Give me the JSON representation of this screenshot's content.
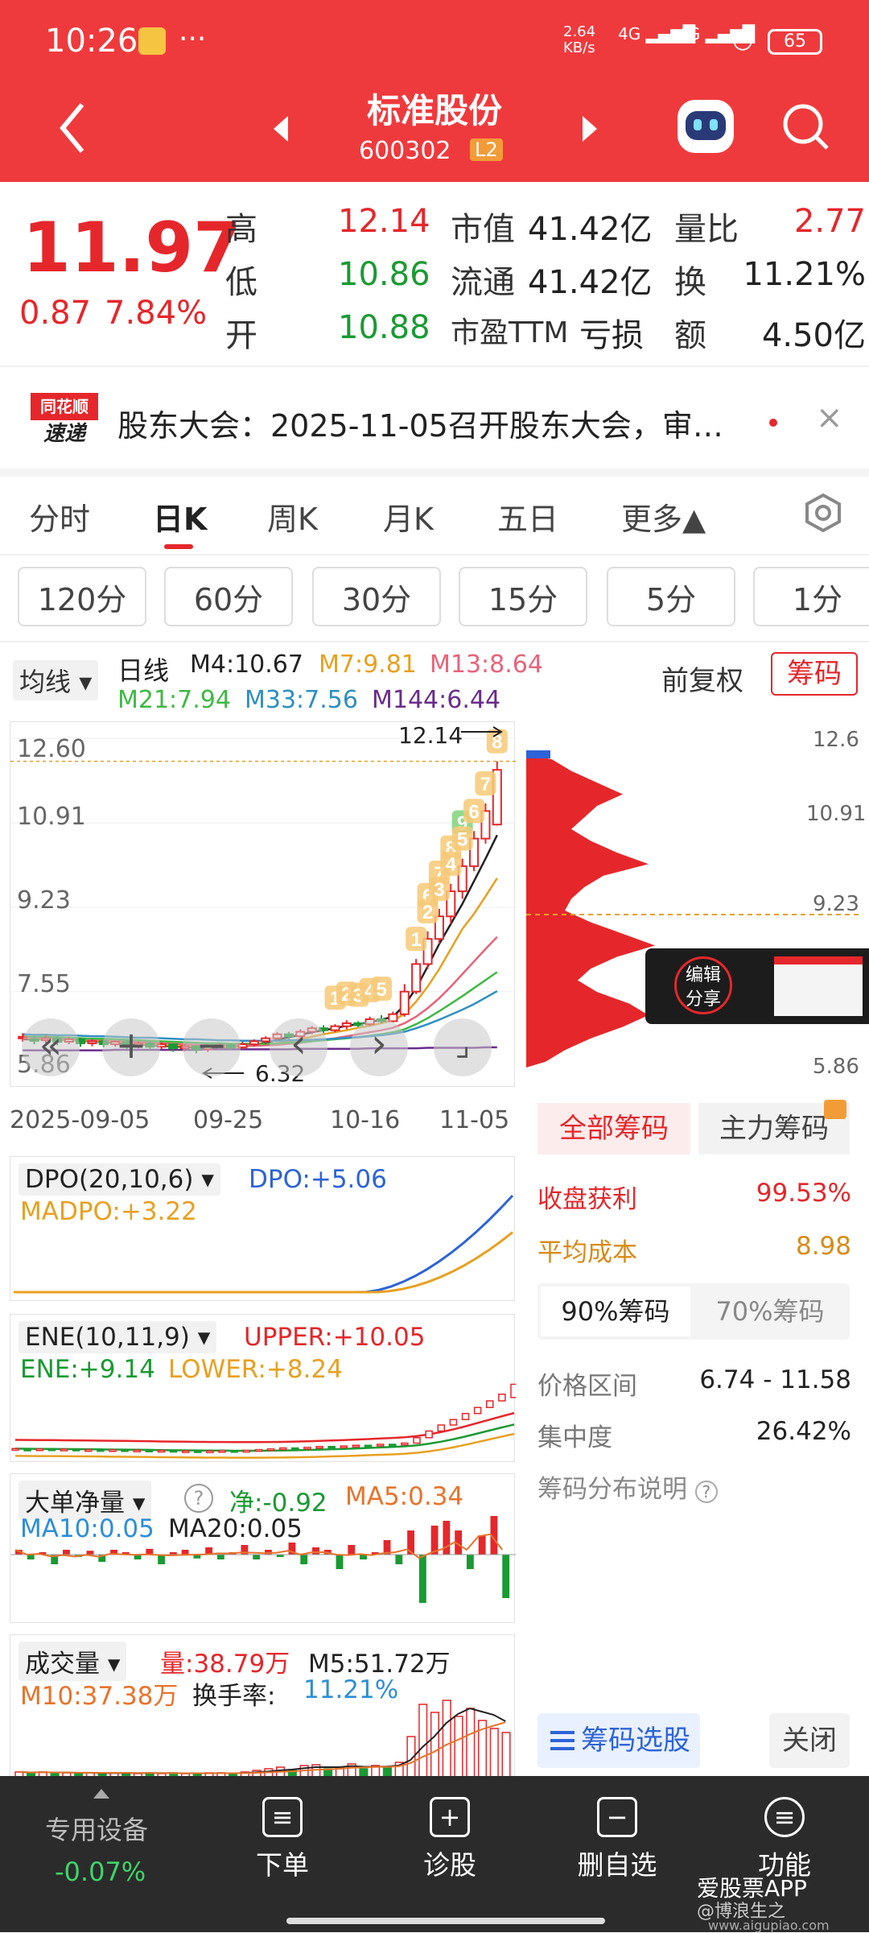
{
  "status_bar": {
    "time": "10:26",
    "dots": "···",
    "net_speed": "2.64 KB/s",
    "sig1": "4G",
    "sig2": "4G",
    "battery": "65"
  },
  "nav": {
    "title": "标准股份",
    "code": "600302",
    "level_badge": "L2"
  },
  "quote": {
    "price": "11.97",
    "change": "0.87",
    "change_pct": "7.84%",
    "rows": [
      {
        "l1": "高",
        "v1": "12.14",
        "l2": "市值",
        "v2": "41.42亿",
        "l3": "量比",
        "v3": "2.77"
      },
      {
        "l1": "低",
        "v1": "10.86",
        "l2": "流通",
        "v2": "41.42亿",
        "l3": "换",
        "v3": "11.21%"
      },
      {
        "l1": "开",
        "v1": "10.88",
        "l2": "市盈TTM",
        "v2": "亏损",
        "l3": "额",
        "v3": "4.50亿"
      }
    ]
  },
  "news": {
    "logo_top": "同花顺",
    "logo_bottom": "速递",
    "text": "股东大会：2025-11-05召开股东大会，审…"
  },
  "tabs": [
    "分时",
    "日K",
    "周K",
    "月K",
    "五日",
    "更多▲"
  ],
  "minute_buttons": [
    "120分",
    "60分",
    "30分",
    "15分",
    "5分",
    "1分"
  ],
  "chart_header": {
    "ma_dropdown": "均线",
    "period": "日线",
    "ma_items": [
      {
        "label": "M4:10.67",
        "color": "#222222"
      },
      {
        "label": "M7:9.81",
        "color": "#e8a020"
      },
      {
        "label": "M13:8.64",
        "color": "#e8637a"
      },
      {
        "label": "M21:7.94",
        "color": "#3fb944"
      },
      {
        "label": "M33:7.56",
        "color": "#2e8fc2"
      },
      {
        "label": "M144:6.44",
        "color": "#6b2d8c"
      }
    ],
    "adjust": "前复权",
    "chip_button": "筹码"
  },
  "chart_data": {
    "type": "candlestick",
    "y_ticks": [
      "12.60",
      "10.91",
      "9.23",
      "7.55",
      "5.86"
    ],
    "right_ticks": [
      "12.6",
      "10.91",
      "9.23",
      "5.86"
    ],
    "x_ticks": [
      "2025-09-05",
      "09-25",
      "10-16",
      "11-05"
    ],
    "high_mark": "12.14",
    "low_mark": "6.32",
    "ylim": [
      5.86,
      12.6
    ],
    "candles": [
      [
        6.62,
        6.65,
        6.55,
        6.72
      ],
      [
        6.6,
        6.58,
        6.5,
        6.66
      ],
      [
        6.58,
        6.62,
        6.52,
        6.68
      ],
      [
        6.62,
        6.55,
        6.48,
        6.66
      ],
      [
        6.55,
        6.6,
        6.5,
        6.65
      ],
      [
        6.6,
        6.52,
        6.45,
        6.63
      ],
      [
        6.52,
        6.56,
        6.46,
        6.6
      ],
      [
        6.56,
        6.5,
        6.44,
        6.6
      ],
      [
        6.5,
        6.55,
        6.45,
        6.58
      ],
      [
        6.55,
        6.48,
        6.4,
        6.58
      ],
      [
        6.48,
        6.52,
        6.42,
        6.56
      ],
      [
        6.52,
        6.45,
        6.38,
        6.55
      ],
      [
        6.45,
        6.5,
        6.4,
        6.54
      ],
      [
        6.5,
        6.42,
        6.35,
        6.52
      ],
      [
        6.42,
        6.46,
        6.36,
        6.5
      ],
      [
        6.46,
        6.4,
        6.32,
        6.48
      ],
      [
        6.4,
        6.45,
        6.35,
        6.5
      ],
      [
        6.45,
        6.48,
        6.4,
        6.52
      ],
      [
        6.48,
        6.44,
        6.38,
        6.52
      ],
      [
        6.44,
        6.5,
        6.4,
        6.55
      ],
      [
        6.5,
        6.56,
        6.46,
        6.6
      ],
      [
        6.56,
        6.62,
        6.5,
        6.66
      ],
      [
        6.62,
        6.7,
        6.58,
        6.74
      ],
      [
        6.7,
        6.66,
        6.6,
        6.75
      ],
      [
        6.66,
        6.75,
        6.62,
        6.8
      ],
      [
        6.75,
        6.82,
        6.7,
        6.86
      ],
      [
        6.82,
        6.78,
        6.72,
        6.88
      ],
      [
        6.78,
        6.86,
        6.74,
        6.9
      ],
      [
        6.86,
        6.92,
        6.8,
        6.98
      ],
      [
        6.92,
        6.88,
        6.84,
        6.96
      ],
      [
        6.9,
        7.0,
        6.86,
        7.05
      ],
      [
        7.0,
        6.96,
        6.92,
        7.08
      ],
      [
        6.96,
        7.1,
        6.94,
        7.15
      ],
      [
        7.1,
        7.55,
        7.05,
        7.7
      ],
      [
        7.55,
        8.1,
        7.5,
        8.2
      ],
      [
        8.1,
        8.6,
        8.0,
        8.75
      ],
      [
        8.6,
        9.05,
        8.5,
        9.2
      ],
      [
        9.05,
        9.55,
        8.9,
        9.7
      ],
      [
        9.55,
        10.05,
        9.4,
        10.2
      ],
      [
        10.05,
        10.6,
        9.95,
        10.75
      ],
      [
        10.6,
        11.15,
        10.5,
        11.3
      ],
      [
        10.88,
        11.97,
        10.86,
        12.14
      ]
    ],
    "ma_series": [
      {
        "name": "M4",
        "color": "#222222",
        "values": [
          6.6,
          6.6,
          6.6,
          6.59,
          6.59,
          6.57,
          6.56,
          6.55,
          6.53,
          6.52,
          6.5,
          6.49,
          6.47,
          6.46,
          6.45,
          6.44,
          6.43,
          6.44,
          6.45,
          6.46,
          6.49,
          6.53,
          6.59,
          6.64,
          6.69,
          6.74,
          6.78,
          6.82,
          6.87,
          6.9,
          6.94,
          6.99,
          7.05,
          7.28,
          7.62,
          8.05,
          8.5,
          8.9,
          9.3,
          9.75,
          10.2,
          10.67
        ]
      },
      {
        "name": "M7",
        "color": "#e8a020",
        "values": [
          6.62,
          6.61,
          6.6,
          6.6,
          6.59,
          6.58,
          6.57,
          6.56,
          6.55,
          6.53,
          6.52,
          6.5,
          6.49,
          6.48,
          6.47,
          6.46,
          6.45,
          6.45,
          6.45,
          6.46,
          6.47,
          6.49,
          6.52,
          6.56,
          6.6,
          6.65,
          6.7,
          6.74,
          6.78,
          6.83,
          6.87,
          6.92,
          6.98,
          7.1,
          7.35,
          7.65,
          8.0,
          8.4,
          8.8,
          9.1,
          9.45,
          9.81
        ]
      },
      {
        "name": "M13",
        "color": "#e8637a",
        "values": [
          6.64,
          6.63,
          6.62,
          6.62,
          6.61,
          6.6,
          6.59,
          6.58,
          6.57,
          6.56,
          6.55,
          6.54,
          6.52,
          6.51,
          6.5,
          6.49,
          6.48,
          6.48,
          6.47,
          6.47,
          6.47,
          6.48,
          6.49,
          6.51,
          6.53,
          6.56,
          6.59,
          6.62,
          6.66,
          6.7,
          6.74,
          6.78,
          6.83,
          6.92,
          7.05,
          7.22,
          7.42,
          7.65,
          7.9,
          8.15,
          8.4,
          8.64
        ]
      },
      {
        "name": "M21",
        "color": "#3fb944",
        "values": [
          6.66,
          6.65,
          6.65,
          6.64,
          6.63,
          6.62,
          6.61,
          6.61,
          6.6,
          6.59,
          6.58,
          6.57,
          6.56,
          6.55,
          6.54,
          6.53,
          6.52,
          6.52,
          6.51,
          6.51,
          6.51,
          6.51,
          6.52,
          6.53,
          6.54,
          6.56,
          6.58,
          6.6,
          6.62,
          6.64,
          6.67,
          6.7,
          6.74,
          6.8,
          6.9,
          7.02,
          7.16,
          7.31,
          7.46,
          7.62,
          7.78,
          7.94
        ]
      },
      {
        "name": "M33",
        "color": "#2e8fc2",
        "values": [
          6.7,
          6.69,
          6.69,
          6.68,
          6.68,
          6.67,
          6.66,
          6.66,
          6.65,
          6.64,
          6.63,
          6.63,
          6.62,
          6.61,
          6.6,
          6.6,
          6.59,
          6.58,
          6.58,
          6.57,
          6.57,
          6.57,
          6.57,
          6.58,
          6.58,
          6.59,
          6.6,
          6.61,
          6.63,
          6.64,
          6.66,
          6.68,
          6.71,
          6.75,
          6.82,
          6.9,
          6.99,
          7.09,
          7.19,
          7.3,
          7.43,
          7.56
        ]
      },
      {
        "name": "M144",
        "color": "#6b2d8c",
        "values": [
          6.38,
          6.38,
          6.38,
          6.38,
          6.38,
          6.38,
          6.38,
          6.38,
          6.39,
          6.39,
          6.39,
          6.39,
          6.39,
          6.39,
          6.39,
          6.39,
          6.4,
          6.4,
          6.4,
          6.4,
          6.4,
          6.4,
          6.4,
          6.4,
          6.41,
          6.41,
          6.41,
          6.41,
          6.41,
          6.41,
          6.42,
          6.42,
          6.42,
          6.42,
          6.42,
          6.43,
          6.43,
          6.43,
          6.43,
          6.43,
          6.44,
          6.44
        ]
      }
    ],
    "count_labels": [
      {
        "i": 27,
        "n": "1"
      },
      {
        "i": 28,
        "n": "2"
      },
      {
        "i": 29,
        "n": "3"
      },
      {
        "i": 30,
        "n": "4"
      },
      {
        "i": 31,
        "n": "5"
      },
      {
        "i": 35,
        "n": "6"
      },
      {
        "i": 36,
        "n": "7"
      },
      {
        "i": 37,
        "n": "8"
      },
      {
        "i": 38,
        "n": "9"
      },
      {
        "i": 34,
        "n": "1"
      },
      {
        "i": 35,
        "n": "2"
      },
      {
        "i": 36,
        "n": "3"
      },
      {
        "i": 37,
        "n": "4"
      },
      {
        "i": 38,
        "n": "5"
      },
      {
        "i": 39,
        "n": "6"
      },
      {
        "i": 40,
        "n": "7"
      },
      {
        "i": 41,
        "n": "8"
      }
    ]
  },
  "chip_distribution": {
    "levels": [
      0.2,
      0.35,
      0.55,
      0.75,
      0.55,
      0.45,
      0.35,
      0.5,
      0.7,
      0.95,
      0.6,
      0.45,
      0.35,
      0.3,
      0.5,
      0.75,
      1.0,
      0.7,
      0.5,
      0.4,
      0.55,
      0.8,
      0.95,
      0.75,
      0.5,
      0.3,
      0.15
    ],
    "avg_cost": "8.98"
  },
  "share_popup": {
    "label": "编辑\n分享",
    "line1": "编辑",
    "line2": "分享"
  },
  "controls": {
    "back": "«",
    "plus": "+",
    "minus": "−",
    "prev": "‹",
    "next": "›",
    "fit": "⌟"
  },
  "indicators": {
    "dpo": {
      "name": "DPO(20,10,6)",
      "v1": "DPO:+5.06",
      "v2": "MADPO:+3.22"
    },
    "ene": {
      "name": "ENE(10,11,9)",
      "v1": "UPPER:+10.05",
      "v2": "ENE:+9.14",
      "v3": "LOWER:+8.24"
    },
    "big_order": {
      "name": "大单净量",
      "v1": "净:-0.92",
      "v2": "MA5:0.34",
      "v3": "MA10:0.05",
      "v4": "MA20:0.05"
    },
    "volume": {
      "name": "成交量",
      "v1": "量:38.79万",
      "v2": "M5:51.72万",
      "v3": "M10:37.38万",
      "v4_label": "换手率:",
      "v4_value": "11.21%"
    }
  },
  "chip_panel": {
    "tab_all": "全部筹码",
    "tab_main": "主力筹码",
    "profit_label": "收盘获利",
    "profit_value": "99.53%",
    "cost_label": "平均成本",
    "cost_value": "8.98",
    "sub_tab_90": "90%筹码",
    "sub_tab_70": "70%筹码",
    "range_label": "价格区间",
    "range_value": "6.74 - 11.58",
    "conc_label": "集中度",
    "conc_value": "26.42%",
    "explain": "筹码分布说明",
    "select_btn": "筹码选股",
    "close_btn": "关闭"
  },
  "bottom_bar": {
    "sector_name": "专用设备",
    "sector_change": "-0.07%",
    "items": [
      {
        "label": "下单",
        "icon": "≡"
      },
      {
        "label": "诊股",
        "icon": "+"
      },
      {
        "label": "删自选",
        "icon": "−"
      },
      {
        "label": "功能",
        "icon": "≡"
      }
    ],
    "watermark": "爱股票APP",
    "watermark2": "@博浪生之",
    "watermark3": "www.aigupiao.com"
  }
}
